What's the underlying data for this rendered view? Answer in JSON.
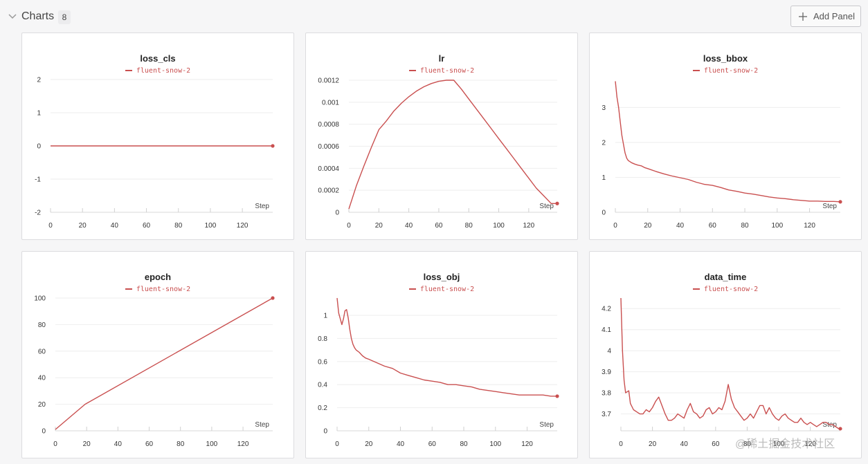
{
  "section": {
    "title": "Charts",
    "count": "8",
    "add_panel_label": "Add Panel"
  },
  "watermark": "@稀土掘金技术社区",
  "style": {
    "line_color": "#c94f4f",
    "grid_color": "#eeeeee"
  },
  "chart_data": [
    {
      "type": "line",
      "title": "loss_cls",
      "legend": [
        "fluent-snow-2"
      ],
      "xlabel": "Step",
      "xlim": [
        0,
        139
      ],
      "ylim": [
        -2,
        2
      ],
      "xticks": [
        0,
        20,
        40,
        60,
        80,
        100,
        120
      ],
      "yticks": [
        -2,
        -1,
        0,
        1,
        2
      ],
      "ytick_labels": [
        "-2",
        "-1",
        "0",
        "1",
        "2"
      ],
      "series": [
        {
          "name": "fluent-snow-2",
          "x": [
            0,
            139
          ],
          "y": [
            0,
            0
          ]
        }
      ]
    },
    {
      "type": "line",
      "title": "lr",
      "legend": [
        "fluent-snow-2"
      ],
      "xlabel": "Step",
      "xlim": [
        0,
        139
      ],
      "ylim": [
        0,
        0.0012
      ],
      "xticks": [
        0,
        20,
        40,
        60,
        80,
        100,
        120
      ],
      "yticks": [
        0,
        0.0002,
        0.0004,
        0.0006,
        0.0008,
        0.001,
        0.0012
      ],
      "ytick_labels": [
        "0",
        "0.0002",
        "0.0004",
        "0.0006",
        "0.0008",
        "0.001",
        "0.0012"
      ],
      "series": [
        {
          "name": "fluent-snow-2",
          "x": [
            0,
            5,
            10,
            15,
            20,
            25,
            30,
            35,
            40,
            45,
            50,
            55,
            60,
            65,
            70,
            75,
            80,
            85,
            90,
            95,
            100,
            105,
            110,
            115,
            120,
            125,
            130,
            135,
            139
          ],
          "y": [
            3e-05,
            0.00024,
            0.00042,
            0.00059,
            0.00075,
            0.00083,
            0.00092,
            0.00099,
            0.00105,
            0.0011,
            0.00114,
            0.00117,
            0.00119,
            0.0012,
            0.0012,
            0.00112,
            0.00103,
            0.00094,
            0.00085,
            0.00076,
            0.00067,
            0.00058,
            0.00049,
            0.0004,
            0.00031,
            0.00022,
            0.00015,
            8e-05,
            8e-05
          ]
        }
      ]
    },
    {
      "type": "line",
      "title": "loss_bbox",
      "legend": [
        "fluent-snow-2"
      ],
      "xlabel": "Step",
      "xlim": [
        0,
        139
      ],
      "ylim": [
        0,
        3.8
      ],
      "xticks": [
        0,
        20,
        40,
        60,
        80,
        100,
        120
      ],
      "yticks": [
        0,
        1,
        2,
        3
      ],
      "ytick_labels": [
        "0",
        "1",
        "2",
        "3"
      ],
      "series": [
        {
          "name": "fluent-snow-2",
          "x": [
            0,
            1,
            2,
            3,
            4,
            5,
            6,
            7,
            8,
            9,
            10,
            12,
            14,
            16,
            18,
            20,
            25,
            30,
            35,
            40,
            45,
            50,
            55,
            60,
            65,
            70,
            75,
            80,
            85,
            90,
            95,
            100,
            105,
            110,
            115,
            120,
            125,
            130,
            135,
            139
          ],
          "y": [
            3.75,
            3.3,
            3.0,
            2.6,
            2.2,
            1.95,
            1.7,
            1.55,
            1.48,
            1.45,
            1.42,
            1.38,
            1.35,
            1.33,
            1.28,
            1.25,
            1.17,
            1.1,
            1.04,
            0.99,
            0.94,
            0.86,
            0.8,
            0.77,
            0.71,
            0.64,
            0.6,
            0.55,
            0.52,
            0.48,
            0.44,
            0.41,
            0.39,
            0.36,
            0.34,
            0.32,
            0.32,
            0.31,
            0.31,
            0.3
          ]
        }
      ]
    },
    {
      "type": "line",
      "title": "epoch",
      "legend": [
        "fluent-snow-2"
      ],
      "xlabel": "Step",
      "xlim": [
        0,
        139
      ],
      "ylim": [
        0,
        100
      ],
      "xticks": [
        0,
        20,
        40,
        60,
        80,
        100,
        120
      ],
      "yticks": [
        0,
        20,
        40,
        60,
        80,
        100
      ],
      "ytick_labels": [
        "0",
        "20",
        "40",
        "60",
        "80",
        "100"
      ],
      "series": [
        {
          "name": "fluent-snow-2",
          "x": [
            0,
            19,
            139
          ],
          "y": [
            1,
            20,
            100
          ]
        }
      ]
    },
    {
      "type": "line",
      "title": "loss_obj",
      "legend": [
        "fluent-snow-2"
      ],
      "xlabel": "Step",
      "xlim": [
        0,
        139
      ],
      "ylim": [
        0,
        1.15
      ],
      "xticks": [
        0,
        20,
        40,
        60,
        80,
        100,
        120
      ],
      "yticks": [
        0,
        0.2,
        0.4,
        0.6,
        0.8,
        1
      ],
      "ytick_labels": [
        "0",
        "0.2",
        "0.4",
        "0.6",
        "0.8",
        "1"
      ],
      "series": [
        {
          "name": "fluent-snow-2",
          "x": [
            0,
            1,
            2,
            3,
            4,
            5,
            6,
            7,
            8,
            9,
            10,
            11,
            12,
            14,
            16,
            18,
            20,
            25,
            30,
            35,
            40,
            45,
            50,
            55,
            60,
            65,
            70,
            75,
            80,
            85,
            90,
            95,
            100,
            105,
            110,
            115,
            120,
            125,
            130,
            135,
            139
          ],
          "y": [
            1.15,
            1.02,
            0.97,
            0.92,
            0.97,
            1.04,
            1.05,
            0.98,
            0.88,
            0.8,
            0.75,
            0.72,
            0.7,
            0.68,
            0.65,
            0.63,
            0.62,
            0.59,
            0.56,
            0.54,
            0.5,
            0.48,
            0.46,
            0.44,
            0.43,
            0.42,
            0.4,
            0.4,
            0.39,
            0.38,
            0.36,
            0.35,
            0.34,
            0.33,
            0.32,
            0.31,
            0.31,
            0.31,
            0.31,
            0.3,
            0.3
          ]
        }
      ]
    },
    {
      "type": "line",
      "title": "data_time",
      "legend": [
        "fluent-snow-2"
      ],
      "xlabel": "Step",
      "xlim": [
        0,
        139
      ],
      "ylim": [
        3.62,
        4.25
      ],
      "xticks": [
        0,
        20,
        40,
        60,
        80,
        100,
        120
      ],
      "yticks": [
        3.7,
        3.8,
        3.9,
        4,
        4.1,
        4.2
      ],
      "ytick_labels": [
        "3.7",
        "3.8",
        "3.9",
        "4",
        "4.1",
        "4.2"
      ],
      "series": [
        {
          "name": "fluent-snow-2",
          "x": [
            0,
            1,
            2,
            3,
            5,
            6,
            8,
            10,
            12,
            14,
            16,
            18,
            20,
            22,
            24,
            26,
            28,
            30,
            32,
            34,
            36,
            38,
            40,
            42,
            44,
            46,
            48,
            50,
            52,
            54,
            56,
            58,
            60,
            62,
            64,
            66,
            68,
            70,
            72,
            74,
            76,
            78,
            80,
            82,
            84,
            86,
            88,
            90,
            92,
            94,
            96,
            98,
            100,
            102,
            104,
            106,
            108,
            110,
            112,
            114,
            116,
            118,
            120,
            122,
            124,
            126,
            128,
            130,
            132,
            134,
            136,
            138,
            139
          ],
          "y": [
            4.25,
            4.0,
            3.86,
            3.8,
            3.81,
            3.75,
            3.72,
            3.71,
            3.7,
            3.7,
            3.72,
            3.71,
            3.73,
            3.76,
            3.78,
            3.74,
            3.7,
            3.67,
            3.67,
            3.68,
            3.7,
            3.69,
            3.68,
            3.72,
            3.75,
            3.71,
            3.7,
            3.68,
            3.69,
            3.72,
            3.73,
            3.7,
            3.71,
            3.73,
            3.72,
            3.76,
            3.84,
            3.77,
            3.73,
            3.71,
            3.69,
            3.67,
            3.68,
            3.7,
            3.68,
            3.71,
            3.74,
            3.74,
            3.7,
            3.73,
            3.7,
            3.68,
            3.67,
            3.69,
            3.7,
            3.68,
            3.67,
            3.66,
            3.66,
            3.68,
            3.66,
            3.65,
            3.66,
            3.65,
            3.64,
            3.65,
            3.66,
            3.66,
            3.65,
            3.65,
            3.64,
            3.63,
            3.63
          ]
        }
      ]
    }
  ]
}
